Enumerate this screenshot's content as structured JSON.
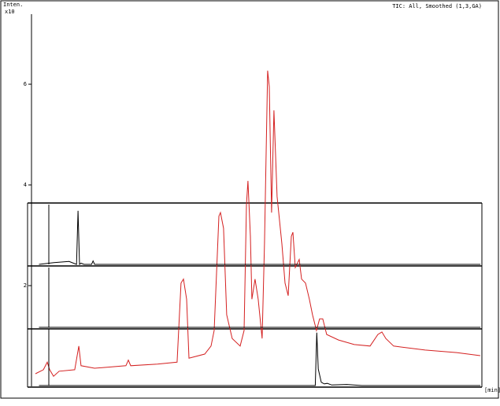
{
  "chart_data": [
    {
      "type": "line",
      "title": "TIC: All, Smoothed (1,3,GA)",
      "y_label": "Inten.",
      "y_unit": "x10",
      "x_label": "[min]",
      "xlim": [
        0,
        30
      ],
      "ylim": [
        0,
        7.36
      ],
      "yticks": [
        2,
        4,
        6
      ],
      "series": [
        {
          "color": "#d42020",
          "x": [
            0.26,
            0.79,
            1.05,
            1.21,
            1.47,
            1.84,
            2.88,
            3.15,
            3.3,
            4.2,
            6.29,
            6.45,
            6.61,
            8.39,
            9.7,
            9.96,
            10.12,
            10.33,
            10.49,
            11.54,
            11.96,
            12.17,
            12.48,
            12.59,
            12.79,
            13.0,
            13.37,
            13.9,
            14.16,
            14.32,
            14.42,
            14.58,
            14.68,
            14.89,
            15.1,
            15.36,
            15.52,
            15.73,
            15.84,
            15.99,
            16.15,
            16.36,
            16.68,
            16.89,
            17.1,
            17.31,
            17.41,
            17.57,
            17.83,
            17.99,
            18.25,
            18.51,
            18.72,
            18.98,
            19.19,
            19.4,
            19.66,
            20.45,
            21.5,
            22.55,
            23.07,
            23.34,
            23.6,
            24.12,
            26.22,
            28.32,
            29.89
          ],
          "values": [
            0.25,
            0.33,
            0.48,
            0.33,
            0.2,
            0.3,
            0.33,
            0.8,
            0.41,
            0.36,
            0.41,
            0.52,
            0.41,
            0.44,
            0.48,
            2.05,
            2.13,
            1.73,
            0.56,
            0.64,
            0.8,
            1.11,
            3.38,
            3.45,
            3.14,
            1.42,
            0.95,
            0.8,
            1.11,
            3.61,
            4.08,
            2.98,
            1.73,
            2.13,
            1.73,
            0.95,
            2.83,
            6.27,
            5.95,
            3.45,
            5.48,
            3.77,
            2.83,
            2.05,
            1.8,
            2.98,
            3.06,
            2.36,
            2.52,
            2.13,
            2.05,
            1.73,
            1.42,
            1.11,
            1.34,
            1.34,
            1.03,
            0.92,
            0.83,
            0.8,
            1.03,
            1.08,
            0.95,
            0.8,
            0.72,
            0.67,
            0.61
          ]
        }
      ]
    },
    {
      "type": "line",
      "xlim": [
        0,
        30
      ],
      "ylim": [
        0,
        100
      ],
      "series": [
        {
          "color": "#000000",
          "x": [
            0.5,
            1.5,
            2.5,
            3.0,
            3.1,
            3.2,
            3.3,
            3.5,
            4.0,
            4.1,
            4.2,
            5.0,
            29.9
          ],
          "values": [
            0,
            3,
            5,
            0,
            92,
            0,
            2,
            0,
            0,
            6,
            0,
            0,
            0
          ]
        }
      ]
    },
    {
      "type": "line",
      "xlim": [
        0,
        30
      ],
      "ylim": [
        0,
        100
      ],
      "series": [
        {
          "color": "#000000",
          "x": [
            0.5,
            29.9
          ],
          "values": [
            0,
            0
          ]
        }
      ]
    },
    {
      "type": "line",
      "xlim": [
        0,
        30
      ],
      "ylim": [
        0,
        100
      ],
      "series": [
        {
          "color": "#000000",
          "x": [
            0.5,
            18.9,
            19.0,
            19.1,
            19.2,
            19.3,
            19.5,
            19.7,
            20,
            21,
            22,
            29.9
          ],
          "values": [
            0,
            0,
            96,
            30,
            18,
            6,
            3,
            4,
            1,
            2,
            0,
            0
          ]
        }
      ]
    }
  ]
}
